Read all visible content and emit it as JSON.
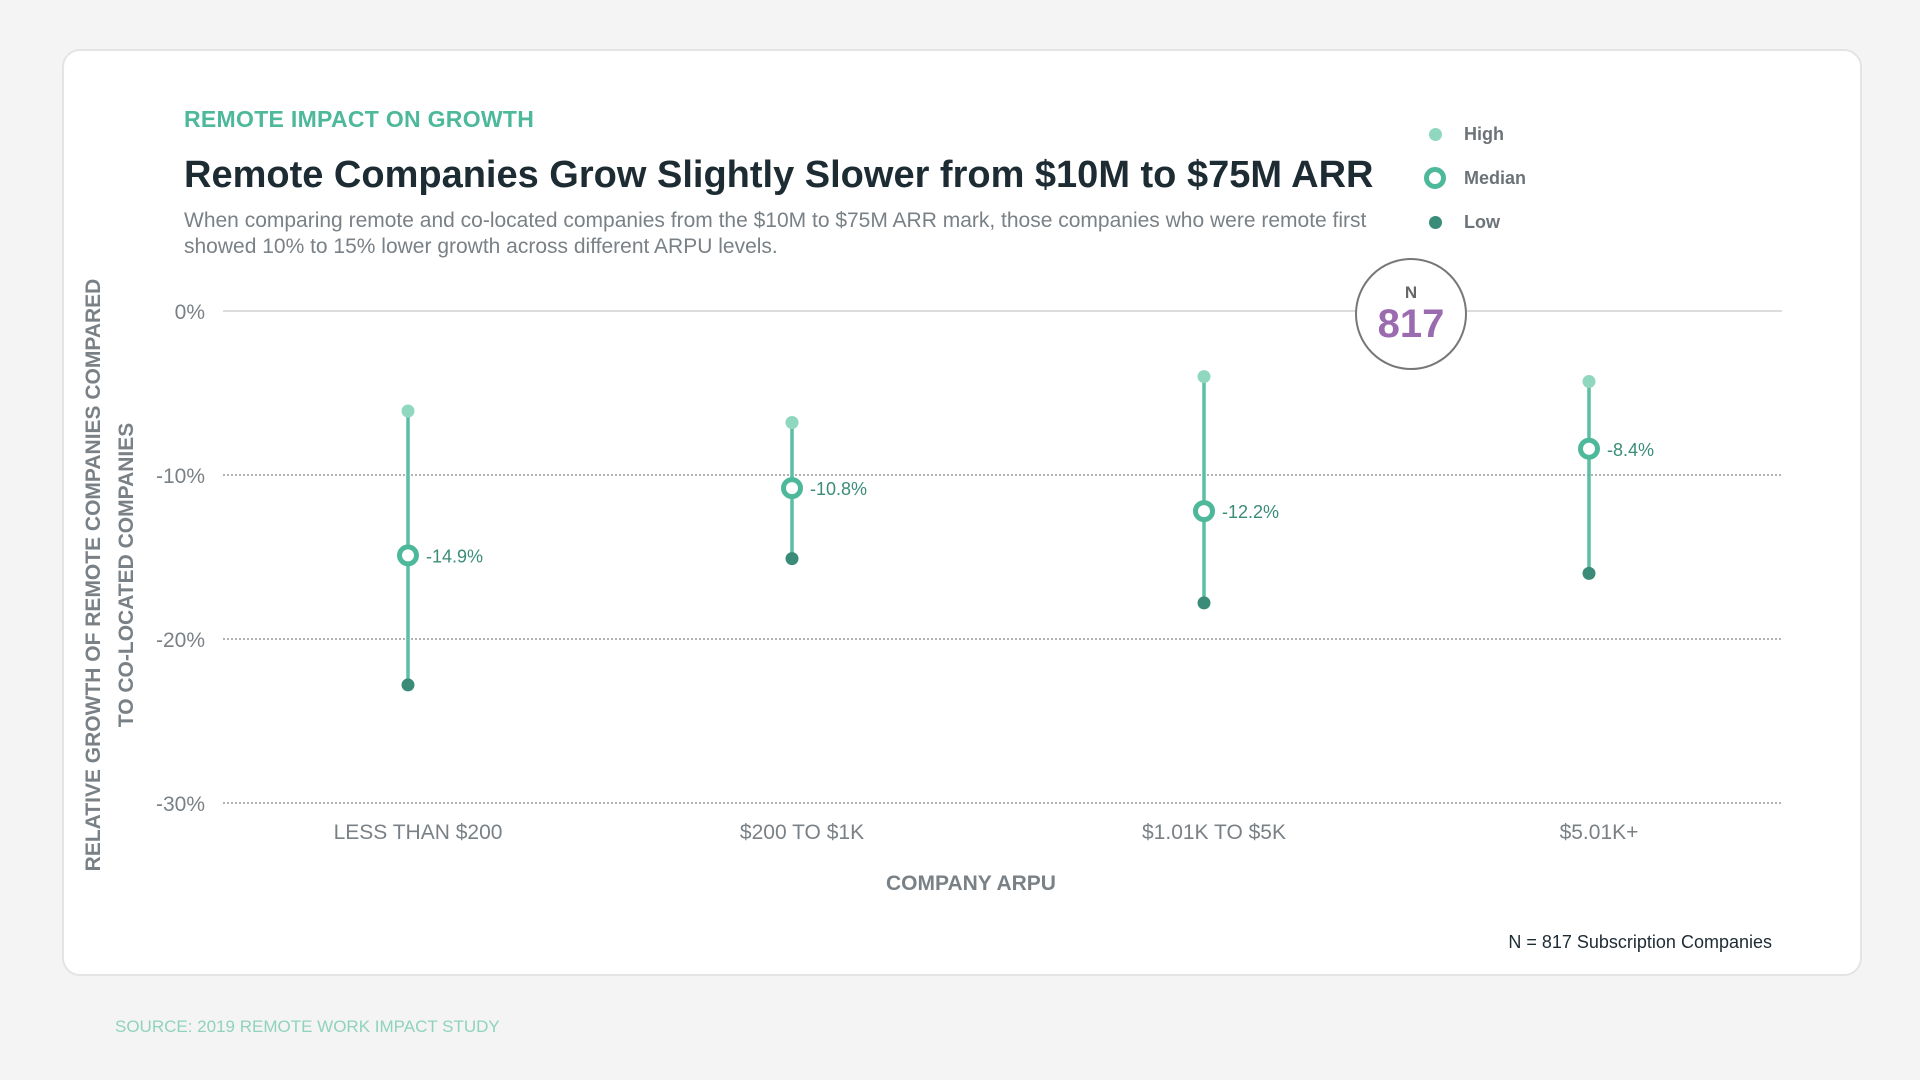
{
  "eyebrow": "REMOTE IMPACT ON GROWTH",
  "source": "SOURCE: 2019 REMOTE WORK IMPACT STUDY",
  "footnote": "N = 817 Subscription Companies",
  "n_badge": {
    "label": "N",
    "value": "817",
    "color": "#9b6bb0"
  },
  "colors": {
    "high": "#8fd8bf",
    "median": "#4db89a",
    "low": "#3a8c78",
    "line": "#5cbfa3"
  },
  "legend": [
    {
      "key": "high",
      "label": "High"
    },
    {
      "key": "median",
      "label": "Median"
    },
    {
      "key": "low",
      "label": "Low"
    }
  ],
  "chart_data": {
    "type": "range-dot",
    "title": "Remote Companies Grow Slightly Slower from $10M to $75M ARR",
    "subtitle": "When comparing remote and co-located companies from the $10M to $75M ARR mark, those companies who were remote first showed 10% to 15% lower growth across different ARPU levels.",
    "xlabel": "COMPANY ARPU",
    "ylabel": [
      "RELATIVE GROWTH OF REMOTE COMPANIES COMPARED",
      "TO CO-LOCATED COMPANIES"
    ],
    "categories": [
      "LESS THAN $200",
      "$200 TO $1K",
      "$1.01K TO $5K",
      "$5.01K+"
    ],
    "series": [
      {
        "name": "High",
        "values": [
          -6.1,
          -6.8,
          -4.0,
          -4.3
        ]
      },
      {
        "name": "Median",
        "values": [
          -14.9,
          -10.8,
          -12.2,
          -8.4
        ]
      },
      {
        "name": "Low",
        "values": [
          -22.8,
          -15.1,
          -17.8,
          -16.0
        ]
      }
    ],
    "median_labels": [
      "-14.9%",
      "-10.8%",
      "-12.2%",
      "-8.4%"
    ],
    "ylim": [
      -30,
      0
    ],
    "yticks": [
      0,
      -10,
      -20,
      -30
    ],
    "ytick_labels": [
      "0%",
      "-10%",
      "-20%",
      "-30%"
    ],
    "grid": true,
    "legend_position": "top-right"
  }
}
